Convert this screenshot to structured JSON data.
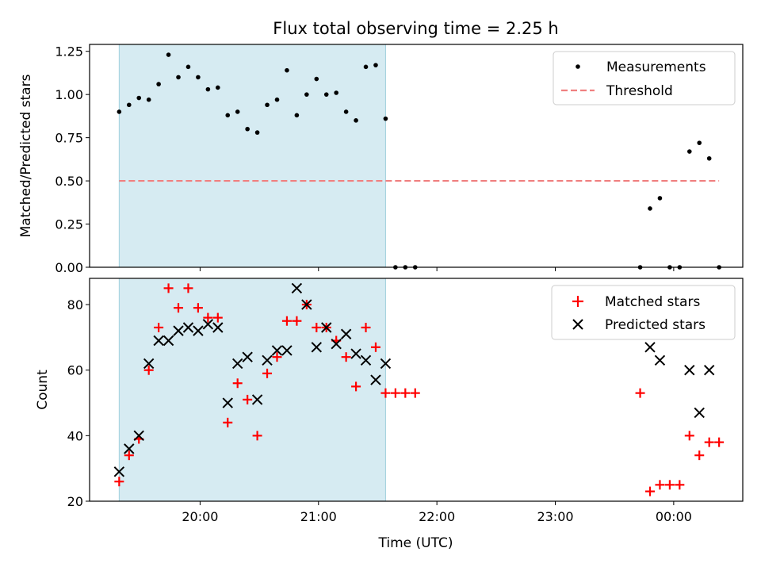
{
  "chart_data": [
    {
      "type": "scatter",
      "title": "Flux total observing time = 2.25 h",
      "ylabel": "Matched/Predicted stars",
      "xlim": [
        "19:04",
        "00:35"
      ],
      "ylim": [
        0,
        1.29
      ],
      "yticks": [
        0,
        0.25,
        0.5,
        0.75,
        1.0,
        1.25
      ],
      "ytick_labels": [
        "0.00",
        "0.25",
        "0.50",
        "0.75",
        "1.00",
        "1.25"
      ],
      "shaded_span": [
        "19:19",
        "21:34"
      ],
      "legend_position": "top-right",
      "series": [
        {
          "name": "Measurements",
          "marker": "dot",
          "color": "#000000",
          "points": [
            [
              "19:19",
              0.9
            ],
            [
              "19:24",
              0.94
            ],
            [
              "19:29",
              0.98
            ],
            [
              "19:34",
              0.97
            ],
            [
              "19:39",
              1.06
            ],
            [
              "19:44",
              1.23
            ],
            [
              "19:49",
              1.1
            ],
            [
              "19:54",
              1.16
            ],
            [
              "19:59",
              1.1
            ],
            [
              "20:04",
              1.03
            ],
            [
              "20:09",
              1.04
            ],
            [
              "20:14",
              0.88
            ],
            [
              "20:19",
              0.9
            ],
            [
              "20:24",
              0.8
            ],
            [
              "20:29",
              0.78
            ],
            [
              "20:34",
              0.94
            ],
            [
              "20:39",
              0.97
            ],
            [
              "20:44",
              1.14
            ],
            [
              "20:49",
              0.88
            ],
            [
              "20:54",
              1.0
            ],
            [
              "20:59",
              1.09
            ],
            [
              "21:04",
              1.0
            ],
            [
              "21:09",
              1.01
            ],
            [
              "21:14",
              0.9
            ],
            [
              "21:19",
              0.85
            ],
            [
              "21:24",
              1.16
            ],
            [
              "21:29",
              1.17
            ],
            [
              "21:34",
              0.86
            ],
            [
              "21:39",
              0.0
            ],
            [
              "21:44",
              0.0
            ],
            [
              "21:49",
              0.0
            ],
            [
              "23:43",
              0.0
            ],
            [
              "23:48",
              0.34
            ],
            [
              "23:53",
              0.4
            ],
            [
              "23:58",
              0.0
            ],
            [
              "00:03",
              0.0
            ],
            [
              "00:08",
              0.67
            ],
            [
              "00:13",
              0.72
            ],
            [
              "00:18",
              0.63
            ],
            [
              "00:23",
              0.0
            ]
          ]
        },
        {
          "name": "Threshold",
          "marker": "dashed-line",
          "color": "#f08080",
          "points": [
            [
              "19:19",
              0.5
            ],
            [
              "00:23",
              0.5
            ]
          ]
        }
      ]
    },
    {
      "type": "scatter",
      "xlabel": "Time (UTC)",
      "ylabel": "Count",
      "xlim": [
        "19:04",
        "00:35"
      ],
      "ylim": [
        20,
        88
      ],
      "yticks": [
        20,
        40,
        60,
        80
      ],
      "xticks": [
        "20:00",
        "21:00",
        "22:00",
        "23:00",
        "00:00"
      ],
      "shaded_span": [
        "19:19",
        "21:34"
      ],
      "legend_position": "top-right",
      "series": [
        {
          "name": "Matched stars",
          "marker": "plus",
          "color": "#ff0000",
          "points": [
            [
              "19:19",
              26
            ],
            [
              "19:24",
              34
            ],
            [
              "19:29",
              39
            ],
            [
              "19:34",
              60
            ],
            [
              "19:39",
              73
            ],
            [
              "19:44",
              85
            ],
            [
              "19:49",
              79
            ],
            [
              "19:54",
              85
            ],
            [
              "19:59",
              79
            ],
            [
              "20:04",
              76
            ],
            [
              "20:09",
              76
            ],
            [
              "20:14",
              44
            ],
            [
              "20:19",
              56
            ],
            [
              "20:24",
              51
            ],
            [
              "20:29",
              40
            ],
            [
              "20:34",
              59
            ],
            [
              "20:39",
              64
            ],
            [
              "20:44",
              75
            ],
            [
              "20:49",
              75
            ],
            [
              "20:54",
              80
            ],
            [
              "20:59",
              73
            ],
            [
              "21:04",
              73
            ],
            [
              "21:09",
              69
            ],
            [
              "21:14",
              64
            ],
            [
              "21:19",
              55
            ],
            [
              "21:24",
              73
            ],
            [
              "21:29",
              67
            ],
            [
              "21:34",
              53
            ],
            [
              "21:39",
              53
            ],
            [
              "21:44",
              53
            ],
            [
              "21:49",
              53
            ],
            [
              "23:43",
              53
            ],
            [
              "23:48",
              23
            ],
            [
              "23:53",
              25
            ],
            [
              "23:58",
              25
            ],
            [
              "00:03",
              25
            ],
            [
              "00:08",
              40
            ],
            [
              "00:13",
              34
            ],
            [
              "00:18",
              38
            ],
            [
              "00:23",
              38
            ]
          ]
        },
        {
          "name": "Predicted stars",
          "marker": "x",
          "color": "#000000",
          "points": [
            [
              "19:19",
              29
            ],
            [
              "19:24",
              36
            ],
            [
              "19:29",
              40
            ],
            [
              "19:34",
              62
            ],
            [
              "19:39",
              69
            ],
            [
              "19:44",
              69
            ],
            [
              "19:49",
              72
            ],
            [
              "19:54",
              73
            ],
            [
              "19:59",
              72
            ],
            [
              "20:04",
              74
            ],
            [
              "20:09",
              73
            ],
            [
              "20:14",
              50
            ],
            [
              "20:19",
              62
            ],
            [
              "20:24",
              64
            ],
            [
              "20:29",
              51
            ],
            [
              "20:34",
              63
            ],
            [
              "20:39",
              66
            ],
            [
              "20:44",
              66
            ],
            [
              "20:49",
              85
            ],
            [
              "20:54",
              80
            ],
            [
              "20:59",
              67
            ],
            [
              "21:04",
              73
            ],
            [
              "21:09",
              68
            ],
            [
              "21:14",
              71
            ],
            [
              "21:19",
              65
            ],
            [
              "21:24",
              63
            ],
            [
              "21:29",
              57
            ],
            [
              "21:34",
              62
            ],
            [
              "23:48",
              67
            ],
            [
              "23:53",
              63
            ],
            [
              "00:08",
              60
            ],
            [
              "00:13",
              47
            ],
            [
              "00:18",
              60
            ]
          ]
        }
      ]
    }
  ]
}
